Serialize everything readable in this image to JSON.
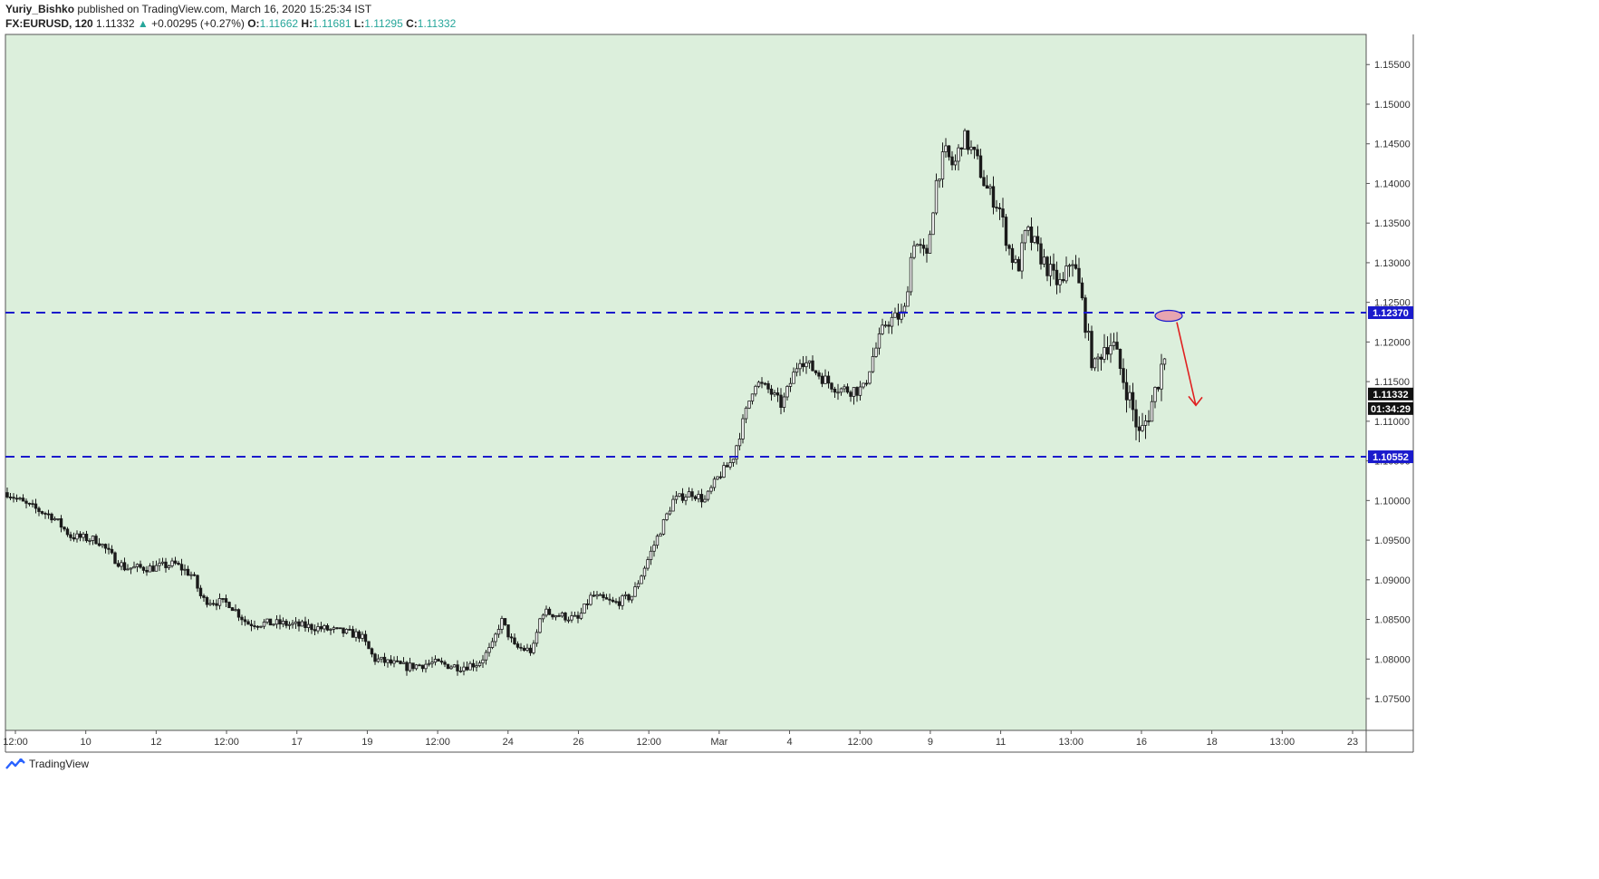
{
  "header": {
    "author": "Yuriy_Bishko",
    "published": "published on TradingView.com, March 16, 2020 15:25:34 IST",
    "symbol": "FX:EURUSD, 120",
    "last": "1.11332",
    "change_arrow": "▲",
    "change": "+0.00295 (+0.27%)",
    "o_label": "O:",
    "o_value": "1.11662",
    "h_label": "H:",
    "h_value": "1.11681",
    "l_label": "L:",
    "l_value": "1.11295",
    "c_label": "C:",
    "c_value": "1.11332"
  },
  "footer": {
    "brand": "TradingView"
  },
  "colors": {
    "background": "#dcefdc",
    "candle": "#1a1a1a",
    "level_line": "#1a1acc",
    "arrow": "#e02020",
    "ellipse_fill": "#e8a5b0",
    "ellipse_stroke": "#1a1acc",
    "price_tag": "#111111"
  },
  "chart_data": {
    "type": "candlestick",
    "ylim": [
      1.071,
      1.1588
    ],
    "yticks": [
      "1.15500",
      "1.15000",
      "1.14500",
      "1.14000",
      "1.13500",
      "1.13000",
      "1.12500",
      "1.12000",
      "1.11500",
      "1.11000",
      "1.10500",
      "1.10000",
      "1.09500",
      "1.09000",
      "1.08500",
      "1.08000",
      "1.07500"
    ],
    "xticks": [
      "12:00",
      "10",
      "12",
      "12:00",
      "17",
      "19",
      "12:00",
      "24",
      "26",
      "12:00",
      "Mar",
      "4",
      "12:00",
      "9",
      "11",
      "13:00",
      "16",
      "18",
      "13:00",
      "23"
    ],
    "levels": [
      {
        "value": 1.1237,
        "label": "1.12370"
      },
      {
        "value": 1.10552,
        "label": "1.10552"
      }
    ],
    "last_price": {
      "label": "1.11332",
      "value": 1.11332
    },
    "countdown": "01:34:29",
    "path": [
      [
        0,
        1.101
      ],
      [
        20,
        1.0995
      ],
      [
        50,
        1.098
      ],
      [
        70,
        1.0955
      ],
      [
        100,
        1.095
      ],
      [
        115,
        1.093
      ],
      [
        130,
        1.0915
      ],
      [
        160,
        1.0915
      ],
      [
        185,
        1.092
      ],
      [
        205,
        1.0905
      ],
      [
        215,
        1.0875
      ],
      [
        245,
        1.087
      ],
      [
        265,
        1.0845
      ],
      [
        300,
        1.0845
      ],
      [
        340,
        1.084
      ],
      [
        390,
        1.083
      ],
      [
        405,
        1.08
      ],
      [
        440,
        1.079
      ],
      [
        470,
        1.0795
      ],
      [
        500,
        1.079
      ],
      [
        520,
        1.0795
      ],
      [
        535,
        1.0815
      ],
      [
        545,
        1.085
      ],
      [
        560,
        1.0815
      ],
      [
        580,
        1.081
      ],
      [
        590,
        1.086
      ],
      [
        610,
        1.0855
      ],
      [
        630,
        1.085
      ],
      [
        645,
        1.088
      ],
      [
        670,
        1.087
      ],
      [
        690,
        1.088
      ],
      [
        705,
        1.092
      ],
      [
        720,
        1.096
      ],
      [
        735,
        1.1
      ],
      [
        755,
        1.101
      ],
      [
        770,
        1.1
      ],
      [
        785,
        1.103
      ],
      [
        800,
        1.105
      ],
      [
        810,
        1.109
      ],
      [
        825,
        1.115
      ],
      [
        840,
        1.114
      ],
      [
        855,
        1.112
      ],
      [
        865,
        1.115
      ],
      [
        875,
        1.118
      ],
      [
        890,
        1.1165
      ],
      [
        905,
        1.115
      ],
      [
        920,
        1.114
      ],
      [
        945,
        1.114
      ],
      [
        955,
        1.118
      ],
      [
        970,
        1.1225
      ],
      [
        990,
        1.1235
      ],
      [
        1000,
        1.133
      ],
      [
        1015,
        1.1305
      ],
      [
        1025,
        1.14
      ],
      [
        1035,
        1.144
      ],
      [
        1045,
        1.142
      ],
      [
        1055,
        1.146
      ],
      [
        1070,
        1.143
      ],
      [
        1080,
        1.1395
      ],
      [
        1095,
        1.137
      ],
      [
        1105,
        1.132
      ],
      [
        1115,
        1.129
      ],
      [
        1125,
        1.134
      ],
      [
        1135,
        1.132
      ],
      [
        1145,
        1.13
      ],
      [
        1155,
        1.128
      ],
      [
        1165,
        1.127
      ],
      [
        1175,
        1.131
      ],
      [
        1185,
        1.126
      ],
      [
        1195,
        1.119
      ],
      [
        1200,
        1.1165
      ],
      [
        1210,
        1.1195
      ],
      [
        1220,
        1.12
      ],
      [
        1230,
        1.116
      ],
      [
        1240,
        1.1125
      ],
      [
        1250,
        1.108
      ],
      [
        1260,
        1.111
      ],
      [
        1270,
        1.115
      ],
      [
        1280,
        1.12
      ],
      [
        1288,
        1.1133
      ]
    ]
  }
}
